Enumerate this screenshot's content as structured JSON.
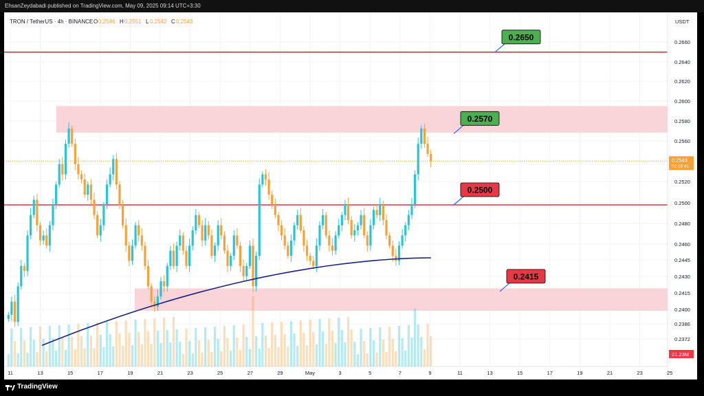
{
  "header": {
    "published_line": "EhsanZeydabadi published on TradingView.com, May 09, 2025 09:14 UTC+3:30"
  },
  "legend": {
    "symbol": "TRON / TetherUS · 4h · BINANCE",
    "o_label": "O",
    "o_value": "0.2546",
    "h_label": "H",
    "h_value": "0.2551",
    "l_label": "L",
    "l_value": "0.2542",
    "c_label": "C",
    "c_value": "0.2543"
  },
  "footer": {
    "brand": "TradingView"
  },
  "colors": {
    "up": "#26c6da",
    "down": "#f7a136",
    "level_line": "#d63548",
    "zone_fill": "#f9d4d8",
    "ma_line": "#1a237e",
    "callout_green": "#4caf50",
    "callout_red": "#e53946",
    "price_tag": "#f7a136",
    "volume_label": "#f23645"
  },
  "chart_data": {
    "type": "candlestick",
    "currency_label": "USDT",
    "y_ticks": [
      "0.2660",
      "0.2640",
      "0.2620",
      "0.2600",
      "0.2580",
      "0.2560",
      "0.2540",
      "0.2520",
      "0.2500",
      "0.2480",
      "0.2460",
      "0.2445",
      "0.2430",
      "0.2415",
      "0.2400",
      "0.2386",
      "0.2372"
    ],
    "x_ticks": [
      "11",
      "13",
      "15",
      "17",
      "19",
      "21",
      "23",
      "25",
      "27",
      "29",
      "May",
      "3",
      "5",
      "7",
      "9",
      "11",
      "13",
      "15",
      "17",
      "19",
      "21",
      "23",
      "25"
    ],
    "last_price": "0.2543",
    "countdown": "02:15:41",
    "volume_value": "21.23M",
    "levels": [
      {
        "value": 0.265,
        "label": "0.2650",
        "style": "green"
      },
      {
        "value": 0.257,
        "label": "0.2570",
        "style": "green"
      },
      {
        "value": 0.25,
        "label": "0.2500",
        "style": "red"
      },
      {
        "value": 0.2415,
        "label": "0.2415",
        "style": "red"
      }
    ],
    "zones": [
      {
        "from": 0.2571,
        "to": 0.2597
      },
      {
        "from": 0.2396,
        "to": 0.2418
      }
    ],
    "closes": [
      0.2392,
      0.2405,
      0.2385,
      0.242,
      0.244,
      0.2435,
      0.247,
      0.249,
      0.2505,
      0.248,
      0.2465,
      0.247,
      0.246,
      0.248,
      0.25,
      0.252,
      0.254,
      0.253,
      0.256,
      0.2575,
      0.256,
      0.254,
      0.253,
      0.2525,
      0.251,
      0.252,
      0.2505,
      0.249,
      0.247,
      0.248,
      0.25,
      0.252,
      0.253,
      0.2545,
      0.252,
      0.25,
      0.248,
      0.246,
      0.2445,
      0.246,
      0.248,
      0.247,
      0.246,
      0.244,
      0.242,
      0.2405,
      0.24,
      0.241,
      0.2425,
      0.242,
      0.244,
      0.2455,
      0.244,
      0.246,
      0.247,
      0.2455,
      0.244,
      0.246,
      0.2475,
      0.249,
      0.248,
      0.2465,
      0.248,
      0.247,
      0.245,
      0.246,
      0.248,
      0.247,
      0.2455,
      0.244,
      0.245,
      0.247,
      0.246,
      0.244,
      0.243,
      0.244,
      0.246,
      0.242,
      0.245,
      0.252,
      0.253,
      0.2525,
      0.251,
      0.25,
      0.249,
      0.248,
      0.247,
      0.246,
      0.245,
      0.2465,
      0.248,
      0.249,
      0.2475,
      0.246,
      0.245,
      0.2445,
      0.244,
      0.246,
      0.248,
      0.249,
      0.247,
      0.246,
      0.2455,
      0.247,
      0.248,
      0.249,
      0.25,
      0.2485,
      0.247,
      0.2475,
      0.248,
      0.249,
      0.247,
      0.246,
      0.248,
      0.2495,
      0.249,
      0.25,
      0.2485,
      0.247,
      0.246,
      0.245,
      0.2445,
      0.246,
      0.247,
      0.248,
      0.249,
      0.25,
      0.253,
      0.256,
      0.2575,
      0.256,
      0.255,
      0.2543
    ]
  }
}
